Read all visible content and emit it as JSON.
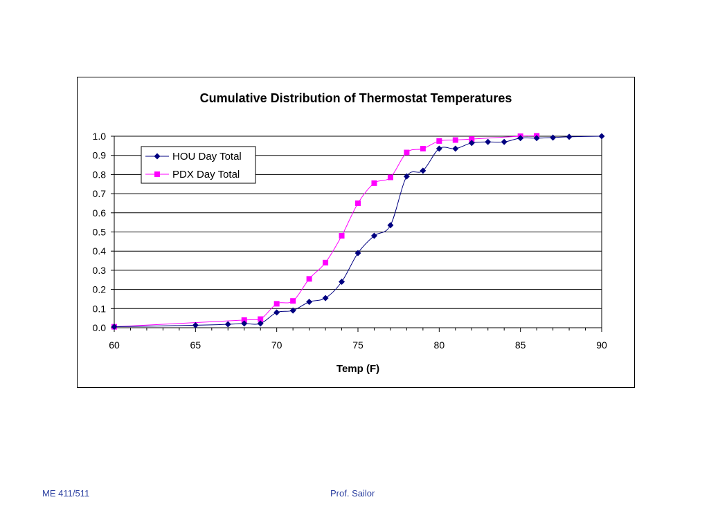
{
  "footer": {
    "left": "ME 411/511",
    "center": "Prof. Sailor"
  },
  "colors": {
    "hou": "#000080",
    "pdx": "#ff00ff",
    "footer_text": "#2b3fa0",
    "grid": "#000000"
  },
  "chart_data": {
    "type": "line",
    "title": "Cumulative Distribution of Thermostat Temperatures",
    "xlabel": "Temp (F)",
    "ylabel": "",
    "xlim": [
      60,
      90
    ],
    "ylim": [
      0,
      1
    ],
    "xticks": [
      60,
      65,
      70,
      75,
      80,
      85,
      90
    ],
    "yticks": [
      0.0,
      0.1,
      0.2,
      0.3,
      0.4,
      0.5,
      0.6,
      0.7,
      0.8,
      0.9,
      1.0
    ],
    "ytick_labels": [
      "0.0",
      "0.1",
      "0.2",
      "0.3",
      "0.4",
      "0.5",
      "0.6",
      "0.7",
      "0.8",
      "0.9",
      "1.0"
    ],
    "grid": "horizontal",
    "legend_position": "top-left",
    "series": [
      {
        "name": "HOU Day Total",
        "marker": "diamond",
        "color": "#000080",
        "x": [
          60,
          65,
          67,
          68,
          69,
          70,
          71,
          72,
          73,
          74,
          75,
          76,
          77,
          78,
          79,
          80,
          81,
          82,
          83,
          84,
          85,
          86,
          87,
          88,
          90
        ],
        "y": [
          0.005,
          0.013,
          0.018,
          0.022,
          0.022,
          0.08,
          0.09,
          0.135,
          0.155,
          0.24,
          0.39,
          0.48,
          0.535,
          0.79,
          0.82,
          0.935,
          0.935,
          0.965,
          0.97,
          0.97,
          0.99,
          0.99,
          0.993,
          0.997,
          1.0
        ]
      },
      {
        "name": "PDX Day Total",
        "marker": "square",
        "color": "#ff00ff",
        "x": [
          60,
          68,
          69,
          70,
          71,
          72,
          73,
          74,
          75,
          76,
          77,
          78,
          79,
          80,
          81,
          82,
          85,
          86
        ],
        "y": [
          0.005,
          0.04,
          0.045,
          0.125,
          0.14,
          0.255,
          0.34,
          0.48,
          0.65,
          0.755,
          0.785,
          0.915,
          0.935,
          0.975,
          0.98,
          0.985,
          1.0,
          1.002
        ]
      }
    ]
  }
}
